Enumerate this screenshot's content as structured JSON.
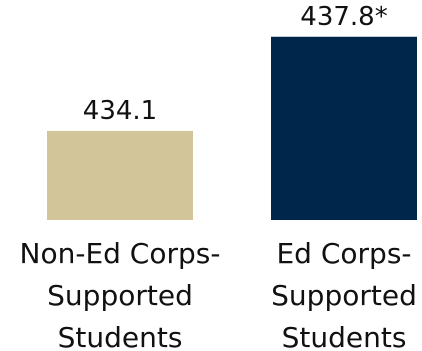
{
  "chart_data": {
    "type": "bar",
    "categories": [
      [
        "Non-Ed Corps-",
        "Supported",
        "Students"
      ],
      [
        "Ed Corps-",
        "Supported",
        "Students"
      ]
    ],
    "values": [
      434.1,
      437.8
    ],
    "value_labels": [
      "434.1",
      "437.8*"
    ],
    "colors": [
      "#D1C599",
      "#00264C"
    ],
    "title": "",
    "xlabel": "",
    "ylabel": "",
    "grid": false
  }
}
